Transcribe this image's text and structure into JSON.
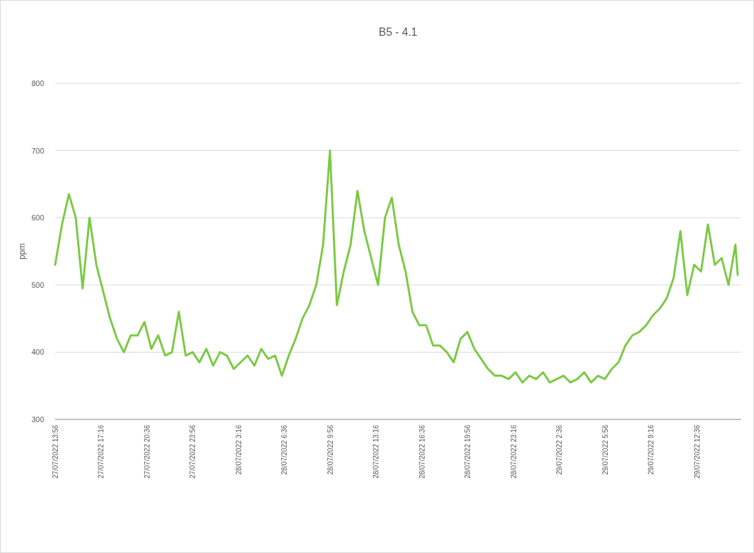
{
  "chart_data": {
    "type": "line",
    "title": "B5 - 4.1",
    "ylabel": "ppm",
    "x": [
      "2022-07-27T13:56",
      "2022-07-27T14:26",
      "2022-07-27T14:56",
      "2022-07-27T15:26",
      "2022-07-27T15:56",
      "2022-07-27T16:26",
      "2022-07-27T16:56",
      "2022-07-27T17:26",
      "2022-07-27T17:56",
      "2022-07-27T18:26",
      "2022-07-27T18:56",
      "2022-07-27T19:26",
      "2022-07-27T19:56",
      "2022-07-27T20:26",
      "2022-07-27T20:56",
      "2022-07-27T21:26",
      "2022-07-27T21:56",
      "2022-07-27T22:26",
      "2022-07-27T22:56",
      "2022-07-27T23:26",
      "2022-07-27T23:56",
      "2022-07-28T00:26",
      "2022-07-28T00:56",
      "2022-07-28T01:26",
      "2022-07-28T01:56",
      "2022-07-28T02:26",
      "2022-07-28T02:56",
      "2022-07-28T03:26",
      "2022-07-28T03:56",
      "2022-07-28T04:26",
      "2022-07-28T04:56",
      "2022-07-28T05:26",
      "2022-07-28T05:56",
      "2022-07-28T06:26",
      "2022-07-28T06:56",
      "2022-07-28T07:26",
      "2022-07-28T07:56",
      "2022-07-28T08:26",
      "2022-07-28T08:56",
      "2022-07-28T09:26",
      "2022-07-28T09:56",
      "2022-07-28T10:26",
      "2022-07-28T10:56",
      "2022-07-28T11:26",
      "2022-07-28T11:56",
      "2022-07-28T12:26",
      "2022-07-28T12:56",
      "2022-07-28T13:26",
      "2022-07-28T13:56",
      "2022-07-28T14:26",
      "2022-07-28T14:56",
      "2022-07-28T15:26",
      "2022-07-28T15:56",
      "2022-07-28T16:26",
      "2022-07-28T16:56",
      "2022-07-28T17:26",
      "2022-07-28T17:56",
      "2022-07-28T18:26",
      "2022-07-28T18:56",
      "2022-07-28T19:26",
      "2022-07-28T19:56",
      "2022-07-28T20:26",
      "2022-07-28T20:56",
      "2022-07-28T21:26",
      "2022-07-28T21:56",
      "2022-07-28T22:26",
      "2022-07-28T22:56",
      "2022-07-28T23:26",
      "2022-07-28T23:56",
      "2022-07-29T00:26",
      "2022-07-29T00:56",
      "2022-07-29T01:26",
      "2022-07-29T01:56",
      "2022-07-29T02:26",
      "2022-07-29T02:56",
      "2022-07-29T03:26",
      "2022-07-29T03:56",
      "2022-07-29T04:26",
      "2022-07-29T04:56",
      "2022-07-29T05:26",
      "2022-07-29T05:56",
      "2022-07-29T06:26",
      "2022-07-29T06:56",
      "2022-07-29T07:26",
      "2022-07-29T07:56",
      "2022-07-29T08:26",
      "2022-07-29T08:56",
      "2022-07-29T09:26",
      "2022-07-29T09:56",
      "2022-07-29T10:26",
      "2022-07-29T10:56",
      "2022-07-29T11:26",
      "2022-07-29T11:56",
      "2022-07-29T12:26",
      "2022-07-29T12:56",
      "2022-07-29T13:26",
      "2022-07-29T13:56",
      "2022-07-29T14:26",
      "2022-07-29T14:56",
      "2022-07-29T15:26",
      "2022-07-29T15:36"
    ],
    "series": [
      {
        "color": "#7ac943",
        "values": [
          530,
          590,
          635,
          600,
          495,
          600,
          530,
          490,
          450,
          420,
          400,
          425,
          425,
          445,
          405,
          425,
          395,
          400,
          460,
          395,
          400,
          385,
          405,
          380,
          400,
          395,
          375,
          385,
          395,
          380,
          405,
          390,
          395,
          365,
          395,
          420,
          450,
          470,
          500,
          560,
          700,
          470,
          520,
          560,
          640,
          580,
          540,
          500,
          600,
          630,
          560,
          520,
          460,
          440,
          440,
          410,
          410,
          400,
          385,
          420,
          430,
          405,
          390,
          375,
          365,
          365,
          360,
          370,
          355,
          365,
          360,
          370,
          355,
          360,
          365,
          355,
          360,
          370,
          355,
          365,
          360,
          375,
          385,
          410,
          425,
          430,
          440,
          455,
          465,
          480,
          510,
          580,
          485,
          530,
          520,
          590,
          530,
          540,
          500,
          560,
          515
        ]
      }
    ],
    "xlim": [
      "2022-07-27T13:56",
      "2022-07-29T15:50"
    ],
    "xticks": [
      {
        "value": "2022-07-27T13:56",
        "label": "27/07/2022 13:56"
      },
      {
        "value": "2022-07-27T17:16",
        "label": "27/07/2022 17:16"
      },
      {
        "value": "2022-07-27T20:36",
        "label": "27/07/2022 20:36"
      },
      {
        "value": "2022-07-27T23:56",
        "label": "27/07/2022 23:56"
      },
      {
        "value": "2022-07-28T03:16",
        "label": "28/07/2022 3:16"
      },
      {
        "value": "2022-07-28T06:36",
        "label": "28/07/2022 6:36"
      },
      {
        "value": "2022-07-28T09:56",
        "label": "28/07/2022 9:56"
      },
      {
        "value": "2022-07-28T13:16",
        "label": "28/07/2022 13:16"
      },
      {
        "value": "2022-07-28T16:36",
        "label": "28/07/2022 16:36"
      },
      {
        "value": "2022-07-28T19:56",
        "label": "28/07/2022 19:56"
      },
      {
        "value": "2022-07-28T23:16",
        "label": "28/07/2022 23:16"
      },
      {
        "value": "2022-07-29T02:36",
        "label": "29/07/2022 2:36"
      },
      {
        "value": "2022-07-29T05:56",
        "label": "29/07/2022 5:56"
      },
      {
        "value": "2022-07-29T09:16",
        "label": "29/07/2022 9:16"
      },
      {
        "value": "2022-07-29T12:36",
        "label": "29/07/2022 12:36"
      }
    ],
    "ylim": [
      300,
      800
    ],
    "yticks": [
      300,
      400,
      500,
      600,
      700,
      800
    ],
    "grid": "y"
  }
}
